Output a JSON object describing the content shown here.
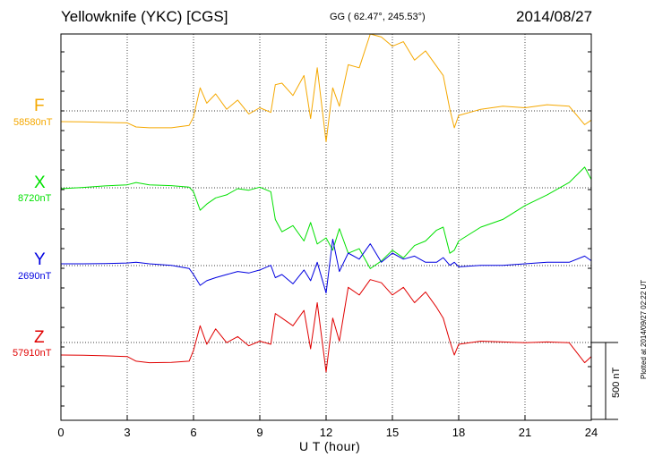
{
  "header": {
    "title": "Yellowknife (YKC)  [CGS]",
    "coords": "GG ( 62.47°, 245.53°)",
    "date": "2014/08/27"
  },
  "footer": {
    "plotted": "Plotted at 2014/09/27 02:22 UT"
  },
  "chart_data": {
    "type": "line",
    "xlabel": "U T (hour)",
    "xlim": [
      0,
      24
    ],
    "xticks": [
      0,
      3,
      6,
      9,
      12,
      15,
      18,
      21,
      24
    ],
    "grid": true,
    "scale_bar": "500 nT",
    "series": [
      {
        "name": "F",
        "baseline_label": "58580nT",
        "color": "#f5a800",
        "x": [
          0,
          1,
          2,
          3,
          3.4,
          4,
          5,
          5.8,
          6,
          6.3,
          6.6,
          7,
          7.5,
          8,
          8.5,
          9,
          9.5,
          9.7,
          10,
          10.5,
          11,
          11.3,
          11.6,
          12,
          12.3,
          12.6,
          13,
          13.5,
          14,
          14.5,
          15,
          15.5,
          16,
          16.5,
          17,
          17.3,
          17.6,
          17.8,
          18,
          19,
          20,
          21,
          22,
          23,
          23.7,
          24
        ],
        "y": [
          58580,
          58578,
          58575,
          58572,
          58545,
          58540,
          58540,
          58555,
          58610,
          58800,
          58700,
          58760,
          58660,
          58720,
          58630,
          58670,
          58640,
          58820,
          58830,
          58750,
          58880,
          58600,
          58930,
          58450,
          58800,
          58680,
          58950,
          58930,
          59150,
          59130,
          59070,
          59100,
          58980,
          59040,
          58940,
          58880,
          58660,
          58540,
          58620,
          58660,
          58680,
          58670,
          58690,
          58680,
          58560,
          58590
        ]
      },
      {
        "name": "X",
        "baseline_label": "8720nT",
        "color": "#00e000",
        "x": [
          0,
          1,
          2,
          3,
          3.4,
          4,
          5,
          5.8,
          6,
          6.3,
          6.6,
          7,
          7.5,
          8,
          8.5,
          9,
          9.5,
          9.7,
          10,
          10.5,
          11,
          11.3,
          11.6,
          12,
          12.3,
          12.6,
          13,
          13.5,
          14,
          14.5,
          15,
          15.5,
          16,
          16.5,
          17,
          17.3,
          17.6,
          17.8,
          18,
          19,
          20,
          21,
          22,
          23,
          23.7,
          24
        ],
        "y": [
          8720,
          8728,
          8738,
          8745,
          8760,
          8745,
          8740,
          8730,
          8700,
          8580,
          8620,
          8660,
          8680,
          8720,
          8710,
          8730,
          8700,
          8520,
          8440,
          8480,
          8380,
          8500,
          8360,
          8400,
          8320,
          8460,
          8300,
          8330,
          8200,
          8250,
          8320,
          8270,
          8350,
          8380,
          8450,
          8470,
          8300,
          8320,
          8380,
          8470,
          8520,
          8610,
          8680,
          8760,
          8860,
          8780
        ]
      },
      {
        "name": "Y",
        "baseline_label": "2690nT",
        "color": "#0000e0",
        "x": [
          0,
          1,
          2,
          3,
          3.4,
          4,
          5,
          5.8,
          6,
          6.3,
          6.6,
          7,
          7.5,
          8,
          8.5,
          9,
          9.5,
          9.7,
          10,
          10.5,
          11,
          11.3,
          11.6,
          12,
          12.3,
          12.6,
          13,
          13.5,
          14,
          14.5,
          15,
          15.5,
          16,
          16.5,
          17,
          17.3,
          17.6,
          17.8,
          18,
          19,
          20,
          21,
          22,
          23,
          23.7,
          24
        ],
        "y": [
          2690,
          2690,
          2692,
          2695,
          2700,
          2690,
          2680,
          2660,
          2620,
          2550,
          2580,
          2600,
          2620,
          2640,
          2630,
          2650,
          2680,
          2600,
          2620,
          2560,
          2650,
          2580,
          2700,
          2500,
          2850,
          2640,
          2760,
          2720,
          2820,
          2700,
          2760,
          2720,
          2740,
          2700,
          2700,
          2730,
          2680,
          2700,
          2670,
          2680,
          2680,
          2690,
          2700,
          2700,
          2740,
          2710
        ]
      },
      {
        "name": "Z",
        "baseline_label": "57910nT",
        "color": "#e00000",
        "x": [
          0,
          1,
          2,
          3,
          3.4,
          4,
          5,
          5.8,
          6,
          6.3,
          6.6,
          7,
          7.5,
          8,
          8.5,
          9,
          9.5,
          9.7,
          10,
          10.5,
          11,
          11.3,
          11.6,
          12,
          12.3,
          12.6,
          13,
          13.5,
          14,
          14.5,
          15,
          15.5,
          16,
          16.5,
          17,
          17.3,
          17.6,
          17.8,
          18,
          19,
          20,
          21,
          22,
          23,
          23.7,
          24
        ],
        "y": [
          57910,
          57908,
          57905,
          57900,
          57870,
          57860,
          57862,
          57870,
          57940,
          58100,
          57980,
          58080,
          57990,
          58030,
          57970,
          58000,
          57980,
          58180,
          58150,
          58100,
          58200,
          57950,
          58250,
          57800,
          58150,
          58000,
          58350,
          58300,
          58400,
          58380,
          58300,
          58350,
          58250,
          58320,
          58220,
          58150,
          58000,
          57910,
          57980,
          58000,
          57995,
          57990,
          57995,
          57990,
          57860,
          57900
        ]
      }
    ]
  }
}
